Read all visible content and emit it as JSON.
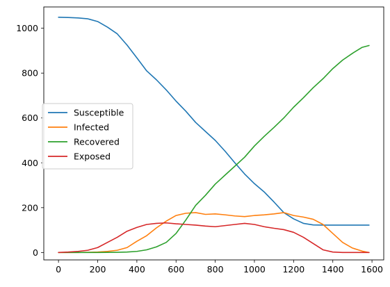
{
  "chart_data": {
    "type": "line",
    "title": "",
    "xlabel": "",
    "ylabel": "",
    "xlim": [
      -75,
      1660
    ],
    "ylim": [
      -33,
      1095
    ],
    "xticks": [
      0,
      200,
      400,
      600,
      800,
      1000,
      1200,
      1400,
      1600
    ],
    "yticks": [
      0,
      200,
      400,
      600,
      800,
      1000
    ],
    "grid": false,
    "legend_position": "center-left",
    "series": [
      {
        "name": "Susceptible",
        "color": "#1f77b4",
        "points": [
          [
            0,
            1049
          ],
          [
            50,
            1048
          ],
          [
            100,
            1046
          ],
          [
            150,
            1042
          ],
          [
            200,
            1030
          ],
          [
            250,
            1005
          ],
          [
            300,
            975
          ],
          [
            350,
            925
          ],
          [
            400,
            868
          ],
          [
            450,
            810
          ],
          [
            500,
            770
          ],
          [
            550,
            725
          ],
          [
            600,
            675
          ],
          [
            650,
            630
          ],
          [
            700,
            580
          ],
          [
            750,
            540
          ],
          [
            800,
            500
          ],
          [
            850,
            452
          ],
          [
            900,
            400
          ],
          [
            950,
            350
          ],
          [
            1000,
            307
          ],
          [
            1050,
            270
          ],
          [
            1100,
            225
          ],
          [
            1150,
            178
          ],
          [
            1200,
            150
          ],
          [
            1250,
            130
          ],
          [
            1300,
            123
          ],
          [
            1350,
            122
          ],
          [
            1400,
            122
          ],
          [
            1450,
            122
          ],
          [
            1500,
            122
          ],
          [
            1585,
            122
          ]
        ]
      },
      {
        "name": "Infected",
        "color": "#ff7f0e",
        "points": [
          [
            0,
            0
          ],
          [
            100,
            0
          ],
          [
            200,
            2
          ],
          [
            250,
            5
          ],
          [
            300,
            10
          ],
          [
            350,
            22
          ],
          [
            400,
            50
          ],
          [
            450,
            75
          ],
          [
            500,
            110
          ],
          [
            550,
            140
          ],
          [
            600,
            165
          ],
          [
            650,
            175
          ],
          [
            700,
            178
          ],
          [
            750,
            170
          ],
          [
            800,
            172
          ],
          [
            850,
            168
          ],
          [
            900,
            163
          ],
          [
            950,
            160
          ],
          [
            1000,
            165
          ],
          [
            1050,
            168
          ],
          [
            1100,
            172
          ],
          [
            1150,
            178
          ],
          [
            1200,
            165
          ],
          [
            1250,
            158
          ],
          [
            1300,
            148
          ],
          [
            1350,
            125
          ],
          [
            1400,
            85
          ],
          [
            1450,
            45
          ],
          [
            1500,
            20
          ],
          [
            1550,
            6
          ],
          [
            1585,
            0
          ]
        ]
      },
      {
        "name": "Recovered",
        "color": "#2ca02c",
        "points": [
          [
            0,
            0
          ],
          [
            100,
            0
          ],
          [
            200,
            0
          ],
          [
            300,
            1
          ],
          [
            350,
            2
          ],
          [
            400,
            5
          ],
          [
            450,
            12
          ],
          [
            500,
            25
          ],
          [
            550,
            45
          ],
          [
            600,
            85
          ],
          [
            650,
            145
          ],
          [
            700,
            210
          ],
          [
            750,
            255
          ],
          [
            800,
            305
          ],
          [
            850,
            345
          ],
          [
            900,
            385
          ],
          [
            950,
            425
          ],
          [
            1000,
            475
          ],
          [
            1050,
            518
          ],
          [
            1100,
            558
          ],
          [
            1150,
            600
          ],
          [
            1200,
            648
          ],
          [
            1250,
            690
          ],
          [
            1300,
            735
          ],
          [
            1350,
            775
          ],
          [
            1400,
            820
          ],
          [
            1450,
            858
          ],
          [
            1500,
            888
          ],
          [
            1550,
            915
          ],
          [
            1585,
            923
          ]
        ]
      },
      {
        "name": "Exposed",
        "color": "#d62728",
        "points": [
          [
            0,
            0
          ],
          [
            50,
            2
          ],
          [
            100,
            5
          ],
          [
            150,
            10
          ],
          [
            200,
            22
          ],
          [
            250,
            45
          ],
          [
            300,
            68
          ],
          [
            350,
            95
          ],
          [
            400,
            112
          ],
          [
            450,
            125
          ],
          [
            500,
            130
          ],
          [
            550,
            132
          ],
          [
            600,
            128
          ],
          [
            650,
            125
          ],
          [
            700,
            122
          ],
          [
            750,
            118
          ],
          [
            800,
            115
          ],
          [
            850,
            120
          ],
          [
            900,
            125
          ],
          [
            950,
            130
          ],
          [
            1000,
            125
          ],
          [
            1050,
            115
          ],
          [
            1100,
            108
          ],
          [
            1150,
            102
          ],
          [
            1200,
            90
          ],
          [
            1250,
            68
          ],
          [
            1300,
            40
          ],
          [
            1350,
            12
          ],
          [
            1400,
            2
          ],
          [
            1450,
            0
          ],
          [
            1585,
            0
          ]
        ]
      }
    ]
  }
}
